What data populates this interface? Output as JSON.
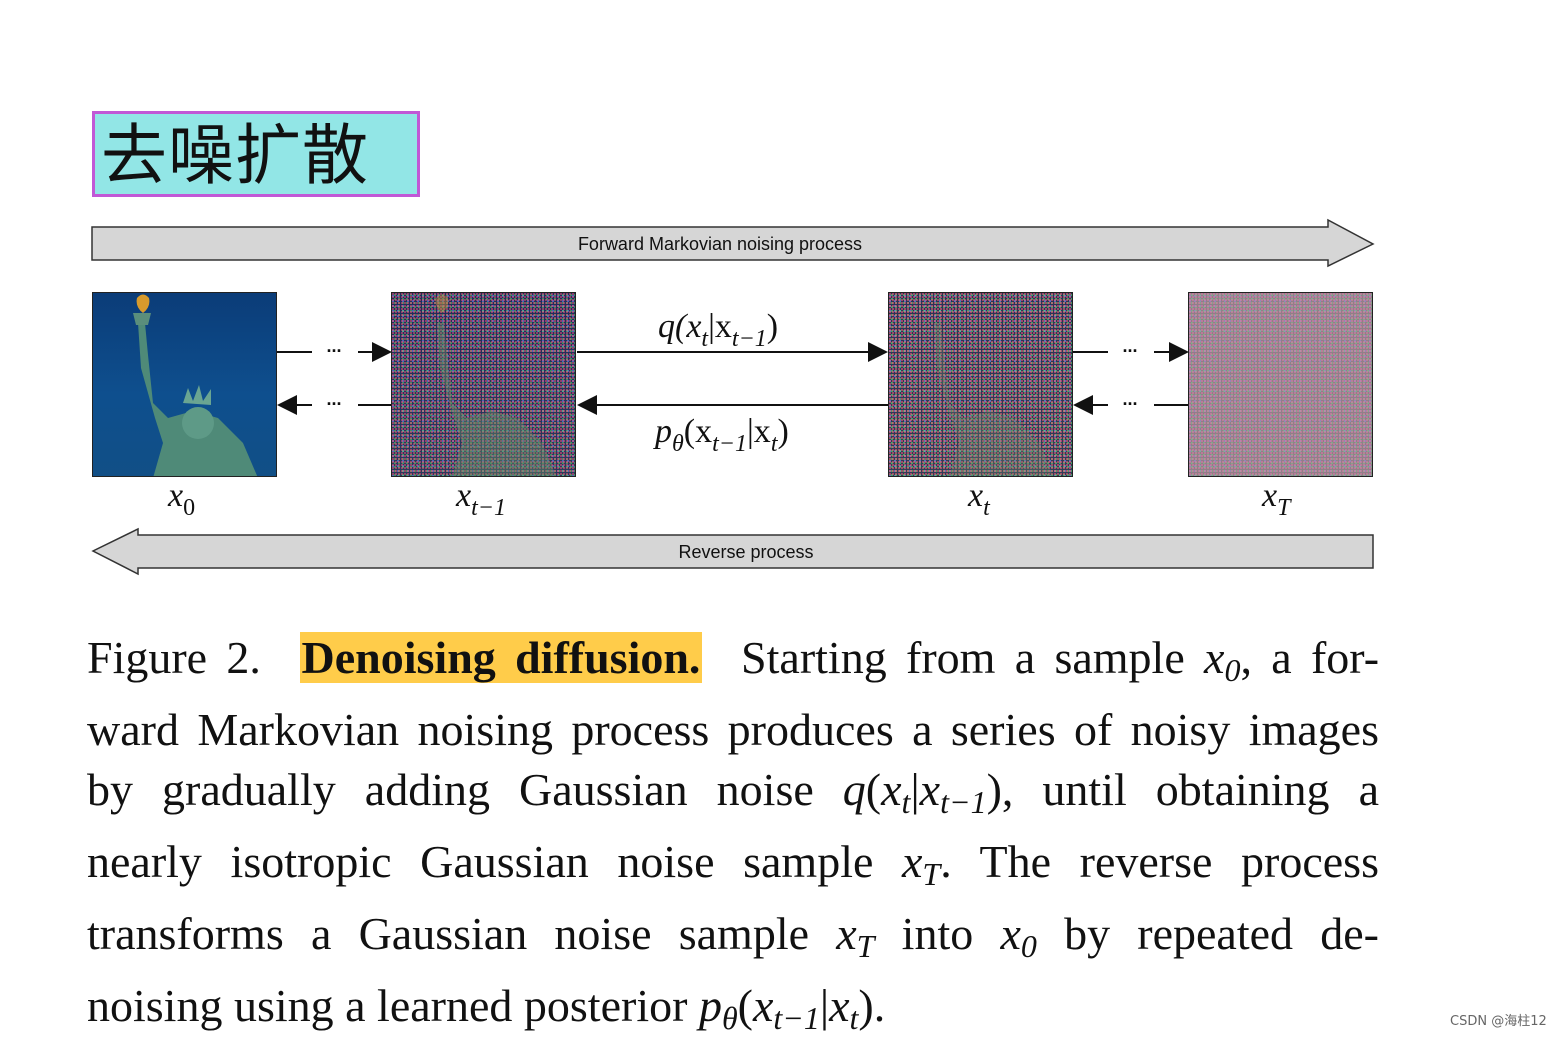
{
  "label_box": {
    "text": "去噪扩散",
    "bg_color": "#92e6e6",
    "border_color": "#c158d6"
  },
  "diagram": {
    "forward_label": "Forward Markovian noising process",
    "reverse_label": "Reverse process",
    "dots": "...",
    "q_label": {
      "base": "q(x",
      "sub1": "t",
      "mid": "|x",
      "sub2": "t−1",
      "end": ")"
    },
    "p_label": {
      "base": "p",
      "theta": "θ",
      "open": "(x",
      "sub1": "t−1",
      "mid": "|x",
      "sub2": "t",
      "end": ")"
    },
    "states": [
      {
        "base": "x",
        "sub": "0"
      },
      {
        "base": "x",
        "sub": "t−1"
      },
      {
        "base": "x",
        "sub": "t"
      },
      {
        "base": "x",
        "sub": "T"
      }
    ]
  },
  "caption": {
    "prefix": "Figure 2.",
    "highlight": "Denoising diffusion.",
    "highlight_color": "#ffcc4a",
    "line1_text": "Starting from a sample ",
    "line1_end": ", a for-",
    "line2": "ward Markovian noising process produces a series of noisy images",
    "line3_start": "by gradually adding Gaussian noise ",
    "line3_end": ", until obtaining a",
    "line4_start": "nearly isotropic Gaussian noise sample ",
    "line4_end": ".  The reverse process",
    "line5_start": "transforms a Gaussian noise sample ",
    "line5_mid": " into ",
    "line5_end": " by repeated de-",
    "line6_start": "noising using a learned posterior ",
    "line6_end": "."
  },
  "watermark": "CSDN @海柱12"
}
